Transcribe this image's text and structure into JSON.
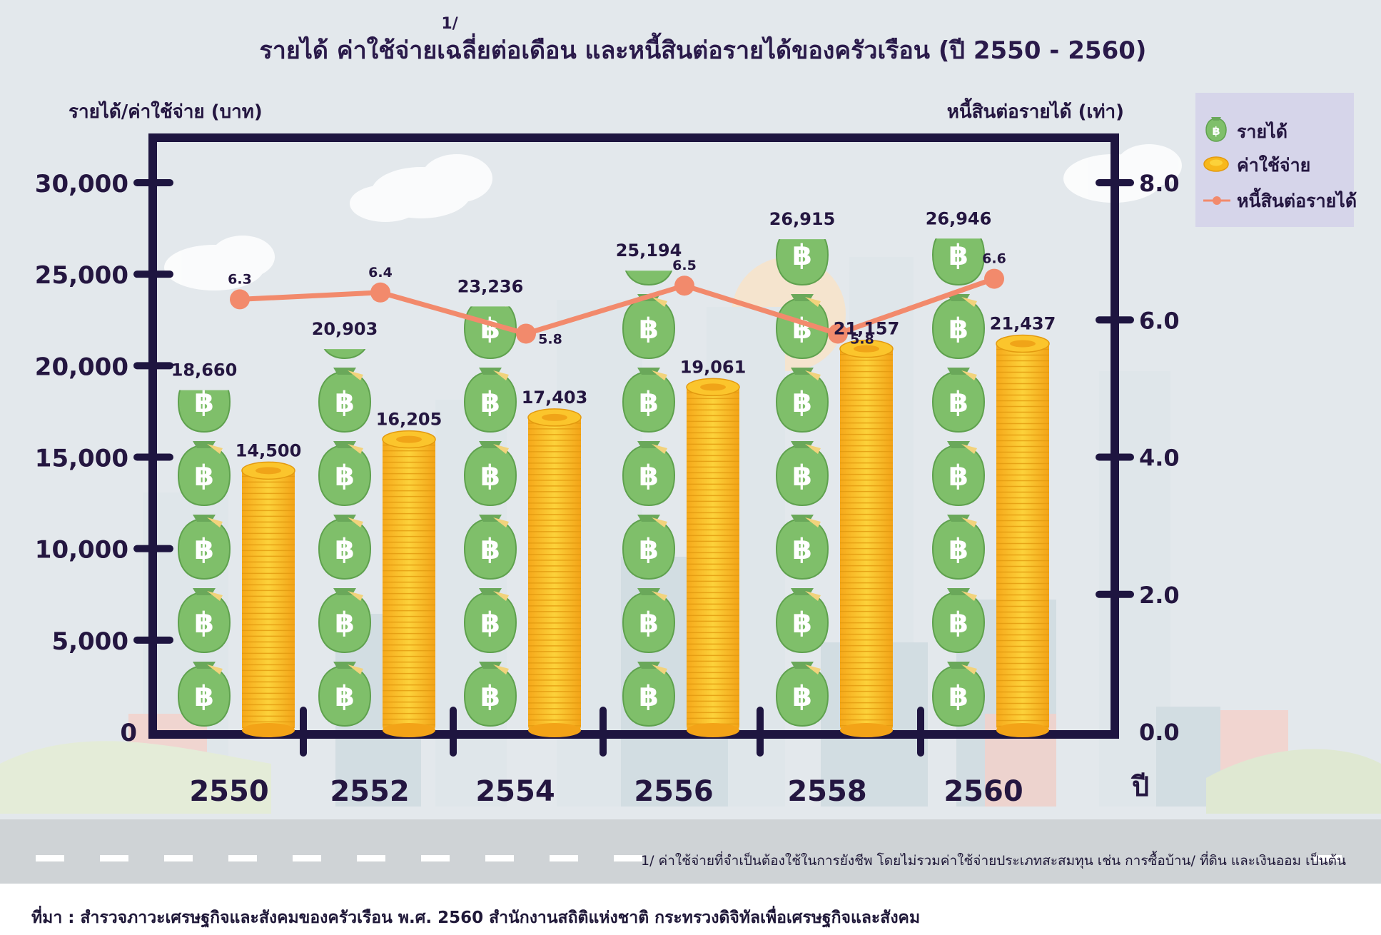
{
  "title": "รายได้ ค่าใช้จ่ายเฉลี่ยต่อเดือน และหนี้สินต่อรายได้ของครัวเรือน (ปี 2550 - 2560)",
  "title_footnote_mark": "1/",
  "left_axis_title": "รายได้/ค่าใช้จ่าย (บาท)",
  "right_axis_title": "หนี้สินต่อรายได้ (เท่า)",
  "x_axis_unit": "ปี",
  "legend": {
    "income": "รายได้",
    "expense": "ค่าใช้จ่าย",
    "debt": "หนี้สินต่อรายได้"
  },
  "footnote": "1/ ค่าใช้จ่ายที่จำเป็นต้องใช้ในการยังชีพ โดยไม่รวมค่าใช้จ่ายประเภทสะสมทุน เช่น การซื้อบ้าน/ ที่ดิน และเงินออม เป็นต้น",
  "source": "ที่มา : สำรวจภาวะเศรษฐกิจและสังคมของครัวเรือน พ.ศ. 2560 สำนักงานสถิติแห่งชาติ กระทรวงดิจิทัลเพื่อเศรษฐกิจและสังคม",
  "colors": {
    "frame": "#1e1540",
    "debt_line": "#f28a6c",
    "bag": "#7fbf6a",
    "coin": "#f7b81c",
    "legend_bg": "#d4d3ea"
  },
  "chart_data": {
    "type": "bar",
    "categories": [
      "2550",
      "2552",
      "2554",
      "2556",
      "2558",
      "2560"
    ],
    "series": [
      {
        "name": "รายได้",
        "axis": "left",
        "values": [
          18660,
          20903,
          23236,
          25194,
          26915,
          26946
        ],
        "labels": [
          "18,660",
          "20,903",
          "23,236",
          "25,194",
          "26,915",
          "26,946"
        ]
      },
      {
        "name": "ค่าใช้จ่าย",
        "axis": "left",
        "values": [
          14500,
          16205,
          17403,
          19061,
          21157,
          21437
        ],
        "labels": [
          "14,500",
          "16,205",
          "17,403",
          "19,061",
          "21,157",
          "21,437"
        ]
      },
      {
        "name": "หนี้สินต่อรายได้",
        "type": "line",
        "axis": "right",
        "values": [
          6.3,
          6.4,
          5.8,
          6.5,
          5.8,
          6.6
        ],
        "labels": [
          "6.3",
          "6.4",
          "5.8",
          "6.5",
          "5.8",
          "6.6"
        ]
      }
    ],
    "left_axis": {
      "ticks": [
        0,
        5000,
        10000,
        15000,
        20000,
        25000,
        30000
      ],
      "tick_labels": [
        "0",
        "5,000",
        "10,000",
        "15,000",
        "20,000",
        "25,000",
        "30,000"
      ],
      "range": [
        0,
        30000
      ]
    },
    "right_axis": {
      "ticks": [
        0,
        2,
        4,
        6,
        8
      ],
      "tick_labels": [
        "0.0",
        "2.0",
        "4.0",
        "6.0",
        "8.0"
      ],
      "range": [
        0,
        8
      ]
    },
    "legend_position": "top-right"
  }
}
